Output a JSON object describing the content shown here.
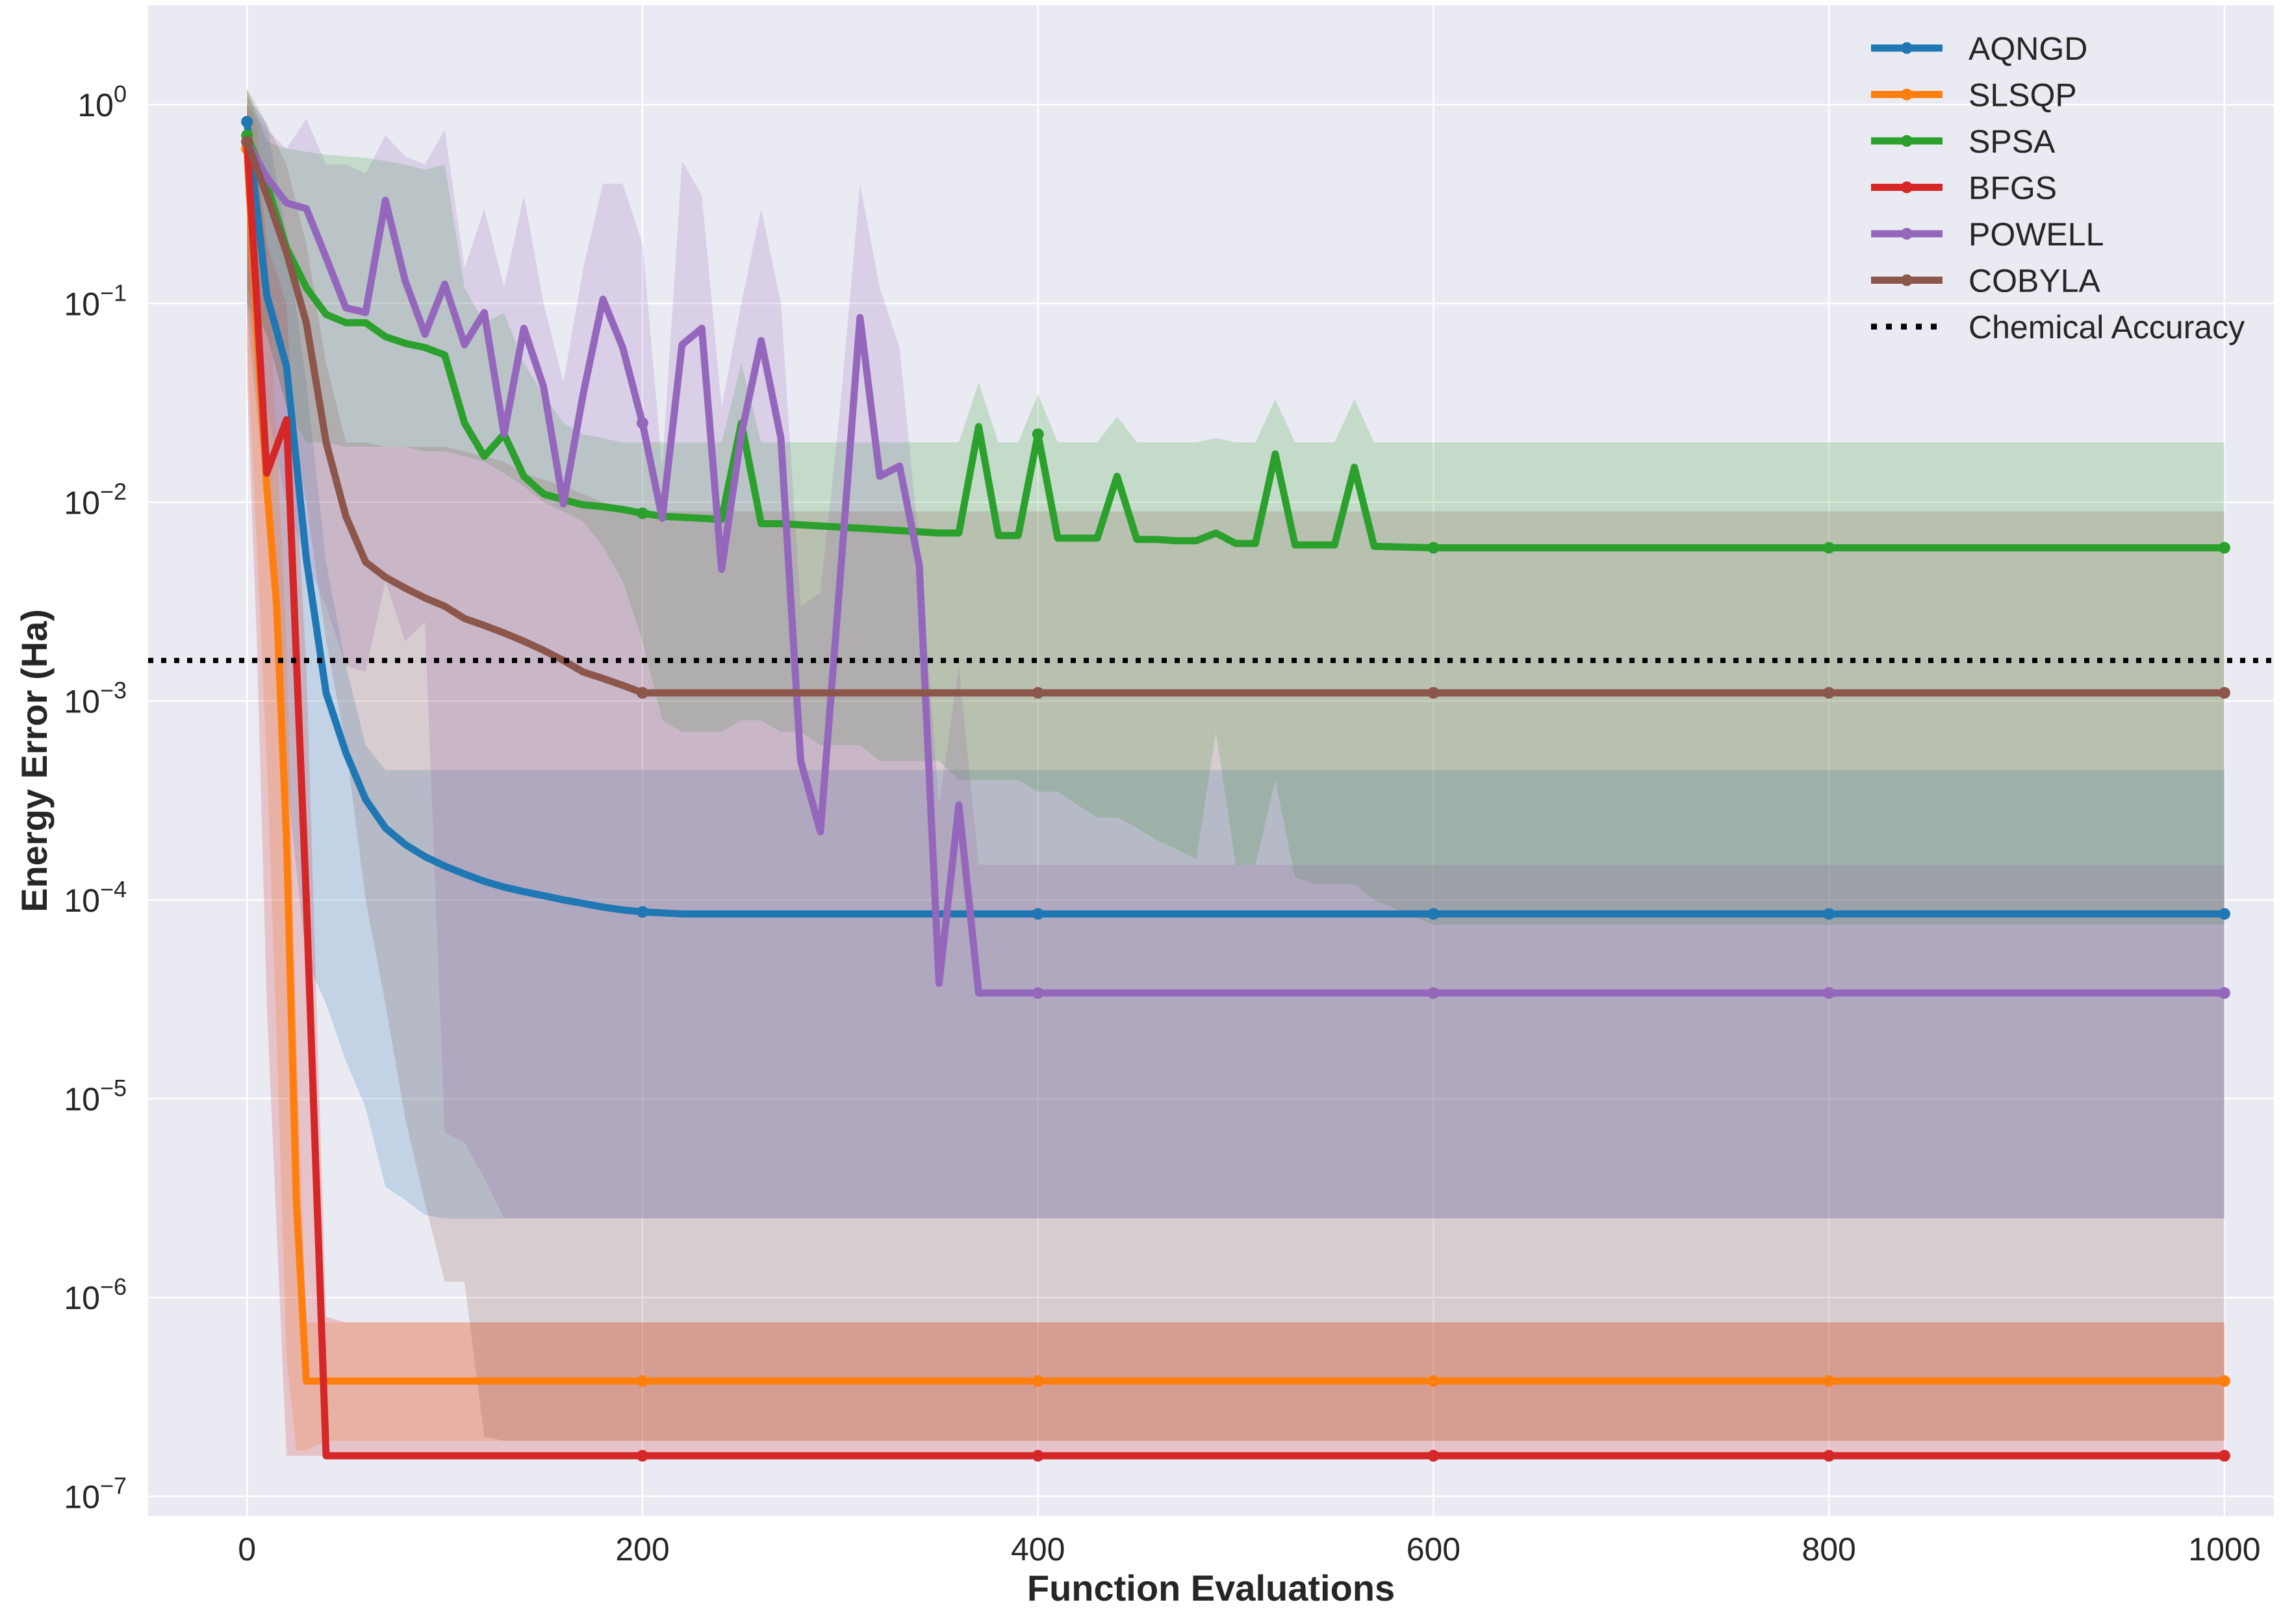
{
  "chart_data": {
    "type": "line",
    "xlabel": "Function Evaluations",
    "ylabel": "Energy Error (Ha)",
    "yscale": "log",
    "xlim": [
      -50,
      1025
    ],
    "ylim_log10": [
      -7.1,
      0.5
    ],
    "grid": true,
    "legend_placement": "top-right",
    "x_ticks": [
      0,
      200,
      400,
      600,
      800,
      1000
    ],
    "y_tick_exponents": [
      0,
      -1,
      -2,
      -3,
      -4,
      -5,
      -6,
      -7
    ],
    "y_tick_base": "10",
    "colors": {
      "background": "#eaeaf2",
      "grid": "#ffffff",
      "reference_line": "#000000"
    },
    "reference_line": {
      "name": "Chemical Accuracy",
      "y": 0.0016,
      "style": "dotted"
    },
    "series": [
      {
        "name": "AQNGD",
        "color": "#1f77b4",
        "x": [
          0,
          10,
          20,
          30,
          40,
          50,
          60,
          70,
          80,
          90,
          100,
          110,
          120,
          130,
          140,
          150,
          160,
          170,
          180,
          190,
          200,
          220,
          240,
          260,
          300,
          350,
          400,
          450,
          500,
          550,
          600,
          700,
          800,
          900,
          1000
        ],
        "y": [
          0.82,
          0.11,
          0.048,
          0.0052,
          0.0011,
          0.00055,
          0.00032,
          0.00023,
          0.00019,
          0.000165,
          0.000148,
          0.000135,
          0.000124,
          0.000116,
          0.00011,
          0.000105,
          0.0001,
          9.6e-05,
          9.2e-05,
          8.9e-05,
          8.7e-05,
          8.5e-05,
          8.5e-05,
          8.5e-05,
          8.5e-05,
          8.5e-05,
          8.5e-05,
          8.5e-05,
          8.5e-05,
          8.5e-05,
          8.5e-05,
          8.5e-05,
          8.5e-05,
          8.5e-05,
          8.5e-05
        ],
        "band_lower": [
          0.09,
          0.009,
          0.0004,
          5e-05,
          3e-05,
          1.55e-05,
          9e-06,
          3.6e-06,
          3.1e-06,
          2.6e-06,
          2.5e-06,
          2.5e-06,
          2.5e-06,
          2.5e-06,
          2.5e-06,
          2.5e-06,
          2.5e-06,
          2.5e-06,
          2.5e-06,
          2.5e-06,
          2.5e-06,
          2.5e-06,
          2.5e-06,
          2.5e-06,
          2.5e-06,
          2.5e-06,
          2.5e-06,
          2.5e-06,
          2.5e-06,
          2.5e-06,
          2.5e-06,
          2.5e-06,
          2.5e-06,
          2.5e-06,
          2.5e-06
        ],
        "band_upper": [
          1.1,
          0.8,
          0.22,
          0.04,
          0.005,
          0.0015,
          0.0006,
          0.00045,
          0.00045,
          0.00045,
          0.00045,
          0.00045,
          0.00045,
          0.00045,
          0.00045,
          0.00045,
          0.00045,
          0.00045,
          0.00045,
          0.00045,
          0.00045,
          0.00045,
          0.00045,
          0.00045,
          0.00045,
          0.00045,
          0.00045,
          0.00045,
          0.00045,
          0.00045,
          0.00045,
          0.00045,
          0.00045,
          0.00045,
          0.00045
        ]
      },
      {
        "name": "SLSQP",
        "color": "#ff7f0e",
        "x": [
          0,
          5,
          10,
          15,
          20,
          25,
          30,
          40,
          100,
          200,
          300,
          400,
          500,
          600,
          800,
          1000
        ],
        "y": [
          0.6,
          0.07,
          0.012,
          0.003,
          0.0002,
          3e-06,
          3.8e-07,
          3.8e-07,
          3.8e-07,
          3.8e-07,
          3.8e-07,
          3.8e-07,
          3.8e-07,
          3.8e-07,
          3.8e-07,
          3.8e-07
        ],
        "band_lower": [
          0.06,
          0.006,
          0.0005,
          2e-05,
          5e-07,
          1.7e-07,
          1.7e-07,
          1.9e-07,
          1.9e-07,
          1.9e-07,
          1.9e-07,
          1.9e-07,
          1.9e-07,
          1.9e-07,
          1.9e-07,
          1.9e-07
        ],
        "band_upper": [
          1.2,
          0.8,
          0.2,
          0.02,
          0.002,
          2e-05,
          7.5e-07,
          7.5e-07,
          7.5e-07,
          7.5e-07,
          7.5e-07,
          7.5e-07,
          7.5e-07,
          7.5e-07,
          7.5e-07,
          7.5e-07
        ]
      },
      {
        "name": "SPSA",
        "color": "#2ca02c",
        "x": [
          0,
          10,
          20,
          30,
          40,
          50,
          60,
          70,
          80,
          90,
          100,
          110,
          120,
          130,
          140,
          150,
          160,
          170,
          180,
          190,
          200,
          210,
          220,
          230,
          240,
          250,
          260,
          270,
          280,
          290,
          300,
          310,
          320,
          330,
          340,
          350,
          360,
          370,
          380,
          390,
          400,
          410,
          420,
          430,
          440,
          450,
          460,
          470,
          480,
          490,
          500,
          510,
          520,
          530,
          540,
          550,
          560,
          570,
          600,
          700,
          800,
          900,
          1000
        ],
        "y": [
          0.7,
          0.4,
          0.19,
          0.12,
          0.088,
          0.08,
          0.08,
          0.068,
          0.063,
          0.06,
          0.055,
          0.025,
          0.017,
          0.022,
          0.0135,
          0.011,
          0.0103,
          0.0097,
          0.0095,
          0.0092,
          0.0088,
          0.0085,
          0.0084,
          0.0083,
          0.0082,
          0.025,
          0.0078,
          0.0078,
          0.0077,
          0.0076,
          0.0075,
          0.0074,
          0.0073,
          0.0072,
          0.0071,
          0.007,
          0.007,
          0.024,
          0.0068,
          0.0068,
          0.022,
          0.0066,
          0.0066,
          0.0066,
          0.0135,
          0.0065,
          0.0065,
          0.0064,
          0.0064,
          0.007,
          0.0062,
          0.0062,
          0.0175,
          0.0061,
          0.0061,
          0.0061,
          0.015,
          0.006,
          0.0059,
          0.0059,
          0.0059,
          0.0059,
          0.0059
        ],
        "band_lower": [
          0.1,
          0.07,
          0.03,
          0.02,
          0.02,
          0.019,
          0.019,
          0.019,
          0.019,
          0.018,
          0.018,
          0.017,
          0.016,
          0.014,
          0.012,
          0.01,
          0.009,
          0.008,
          0.006,
          0.004,
          0.002,
          0.0008,
          0.0007,
          0.0007,
          0.0007,
          0.0008,
          0.0008,
          0.0007,
          0.0007,
          0.0006,
          0.0006,
          0.0006,
          0.0005,
          0.0005,
          0.0005,
          0.0005,
          0.0004,
          0.0004,
          0.0004,
          0.0004,
          0.00035,
          0.00035,
          0.0003,
          0.00026,
          0.00026,
          0.00023,
          0.0002,
          0.00018,
          0.00016,
          0.0007,
          0.00015,
          0.00015,
          0.0004,
          0.00013,
          0.00012,
          0.00012,
          0.00012,
          0.0001,
          7.5e-05,
          7.5e-05,
          7.5e-05,
          7.5e-05,
          7.5e-05
        ],
        "band_upper": [
          1.2,
          0.65,
          0.6,
          0.58,
          0.56,
          0.55,
          0.54,
          0.52,
          0.5,
          0.47,
          0.5,
          0.12,
          0.08,
          0.09,
          0.05,
          0.035,
          0.025,
          0.022,
          0.021,
          0.02,
          0.02,
          0.02,
          0.02,
          0.02,
          0.02,
          0.05,
          0.02,
          0.02,
          0.02,
          0.02,
          0.02,
          0.02,
          0.02,
          0.02,
          0.02,
          0.02,
          0.02,
          0.04,
          0.02,
          0.02,
          0.035,
          0.02,
          0.02,
          0.02,
          0.027,
          0.02,
          0.02,
          0.02,
          0.02,
          0.021,
          0.02,
          0.02,
          0.033,
          0.02,
          0.02,
          0.02,
          0.033,
          0.02,
          0.02,
          0.02,
          0.02,
          0.02,
          0.02
        ]
      },
      {
        "name": "BFGS",
        "color": "#d62728",
        "x": [
          0,
          5,
          10,
          20,
          30,
          40,
          50,
          100,
          200,
          300,
          400,
          500,
          600,
          800,
          1000
        ],
        "y": [
          0.65,
          0.1,
          0.014,
          0.026,
          0.0001,
          1.6e-07,
          1.6e-07,
          1.6e-07,
          1.6e-07,
          1.6e-07,
          1.6e-07,
          1.6e-07,
          1.6e-07,
          1.6e-07,
          1.6e-07
        ],
        "band_lower": [
          0.04,
          0.002,
          3e-05,
          1.6e-07,
          1.6e-07,
          1.6e-07,
          1.6e-07,
          1.6e-07,
          1.6e-07,
          1.6e-07,
          1.6e-07,
          1.6e-07,
          1.6e-07,
          1.6e-07,
          1.6e-07
        ],
        "band_upper": [
          1.0,
          0.5,
          0.2,
          0.1,
          0.0015,
          8e-07,
          7.5e-07,
          7.5e-07,
          7.5e-07,
          7.5e-07,
          7.5e-07,
          7.5e-07,
          7.5e-07,
          7.5e-07,
          7.5e-07
        ]
      },
      {
        "name": "POWELL",
        "color": "#9467bd",
        "x": [
          0,
          10,
          20,
          30,
          40,
          50,
          60,
          70,
          80,
          90,
          100,
          110,
          120,
          130,
          140,
          150,
          160,
          170,
          180,
          190,
          200,
          210,
          220,
          230,
          240,
          250,
          260,
          270,
          280,
          290,
          300,
          310,
          320,
          330,
          340,
          350,
          360,
          370,
          400,
          500,
          600,
          700,
          800,
          900,
          1000
        ],
        "y": [
          0.65,
          0.43,
          0.32,
          0.3,
          0.17,
          0.095,
          0.09,
          0.33,
          0.13,
          0.07,
          0.125,
          0.062,
          0.09,
          0.022,
          0.075,
          0.038,
          0.0098,
          0.035,
          0.105,
          0.06,
          0.025,
          0.0083,
          0.062,
          0.075,
          0.0046,
          0.022,
          0.065,
          0.021,
          0.0005,
          0.00022,
          0.0042,
          0.085,
          0.0135,
          0.0152,
          0.0048,
          3.8e-05,
          0.0003,
          3.4e-05,
          3.4e-05,
          3.4e-05,
          3.4e-05,
          3.4e-05,
          3.4e-05,
          3.4e-05,
          3.4e-05
        ],
        "band_lower": [
          0.1,
          0.03,
          0.01,
          0.005,
          0.003,
          0.0015,
          0.0014,
          0.004,
          0.002,
          0.0025,
          6.8e-06,
          6e-06,
          4e-06,
          2.5e-06,
          2.5e-06,
          2.5e-06,
          2.5e-06,
          2.5e-06,
          2.5e-06,
          2.5e-06,
          2.5e-06,
          2.5e-06,
          2.5e-06,
          2.5e-06,
          2.5e-06,
          2.5e-06,
          2.5e-06,
          2.5e-06,
          2.5e-06,
          2.5e-06,
          2.5e-06,
          2.5e-06,
          2.5e-06,
          2.5e-06,
          2.5e-06,
          2.5e-06,
          2.5e-06,
          2.5e-06,
          2.5e-06,
          2.5e-06,
          2.5e-06,
          2.5e-06,
          2.5e-06,
          2.5e-06,
          2.5e-06
        ],
        "band_upper": [
          1.0,
          0.75,
          0.6,
          0.85,
          0.5,
          0.5,
          0.45,
          0.7,
          0.55,
          0.5,
          0.75,
          0.15,
          0.3,
          0.12,
          0.35,
          0.1,
          0.04,
          0.15,
          0.4,
          0.4,
          0.2,
          0.015,
          0.52,
          0.35,
          0.03,
          0.1,
          0.3,
          0.1,
          0.003,
          0.0035,
          0.03,
          0.4,
          0.12,
          0.06,
          0.006,
          0.0003,
          0.0015,
          0.00015,
          0.00015,
          0.00015,
          0.00015,
          0.00015,
          0.00015,
          0.00015,
          0.00015
        ]
      },
      {
        "name": "COBYLA",
        "color": "#8c564b",
        "x": [
          0,
          10,
          20,
          30,
          40,
          50,
          60,
          70,
          80,
          90,
          100,
          110,
          120,
          130,
          140,
          150,
          160,
          170,
          180,
          190,
          200,
          300,
          400,
          500,
          600,
          700,
          800,
          900,
          1000
        ],
        "y": [
          0.65,
          0.35,
          0.18,
          0.08,
          0.02,
          0.0085,
          0.005,
          0.0042,
          0.0037,
          0.0033,
          0.003,
          0.0026,
          0.0024,
          0.0022,
          0.002,
          0.0018,
          0.0016,
          0.0014,
          0.0013,
          0.0012,
          0.0011,
          0.0011,
          0.0011,
          0.0011,
          0.0011,
          0.0011,
          0.0011,
          0.0011,
          0.0011
        ],
        "band_lower": [
          0.12,
          0.07,
          0.03,
          0.01,
          0.002,
          0.0006,
          0.0001,
          3e-05,
          8e-06,
          3e-06,
          1.2e-06,
          1.2e-06,
          2e-07,
          1.9e-07,
          1.9e-07,
          1.9e-07,
          1.9e-07,
          1.9e-07,
          1.9e-07,
          1.9e-07,
          1.9e-07,
          1.9e-07,
          1.9e-07,
          1.9e-07,
          1.9e-07,
          1.9e-07,
          1.9e-07,
          1.9e-07,
          1.9e-07
        ],
        "band_upper": [
          1.2,
          0.8,
          0.5,
          0.2,
          0.05,
          0.02,
          0.02,
          0.019,
          0.019,
          0.019,
          0.019,
          0.018,
          0.017,
          0.016,
          0.014,
          0.013,
          0.012,
          0.011,
          0.01,
          0.0095,
          0.009,
          0.009,
          0.009,
          0.009,
          0.009,
          0.009,
          0.009,
          0.009,
          0.009
        ]
      }
    ]
  }
}
